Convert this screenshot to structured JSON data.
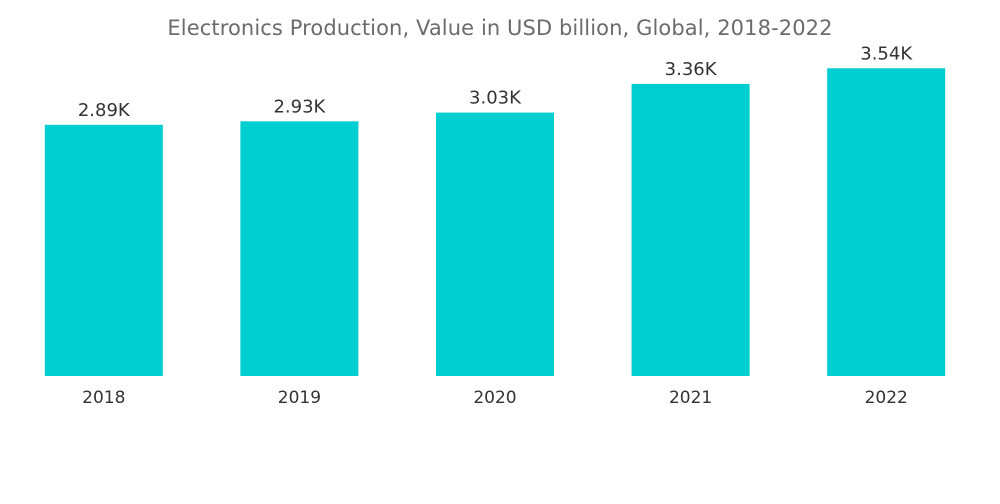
{
  "chart_data": {
    "type": "bar",
    "title": "Electronics Production, Value in USD billion, Global, 2018-2022",
    "categories": [
      "2018",
      "2019",
      "2020",
      "2021",
      "2022"
    ],
    "values": [
      2890,
      2930,
      3030,
      3360,
      3540
    ],
    "data_labels": [
      "2.89K",
      "2.93K",
      "3.03K",
      "3.36K",
      "3.54K"
    ],
    "xlabel": "",
    "ylabel": "",
    "ylim": [
      0,
      3900
    ],
    "grid": false,
    "legend": "none",
    "bar_color": "#00ced1",
    "label_color": "#333333",
    "title_color": "#6b6b6b"
  }
}
